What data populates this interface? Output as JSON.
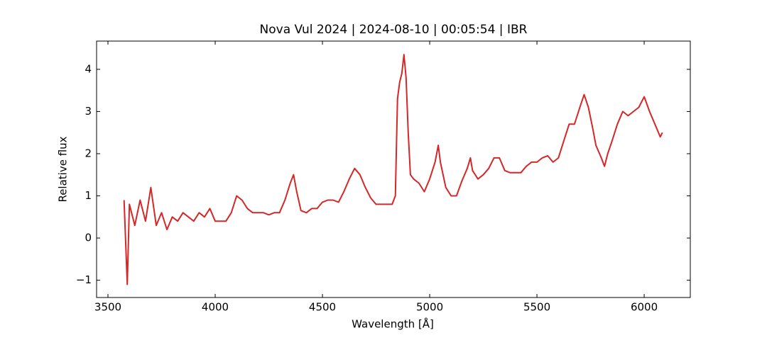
{
  "chart_data": {
    "type": "line",
    "title": "Nova Vul 2024 | 2024-08-10 | 00:05:54 | IBR",
    "x_label": "Wavelength [Å]",
    "y_label": "Relative flux",
    "xlim": [
      3447,
      6215
    ],
    "ylim": [
      -1.41,
      4.67
    ],
    "xticks": [
      3500,
      4000,
      4500,
      5000,
      5500,
      6000
    ],
    "yticks": [
      {
        "value": -1,
        "label": "−1"
      },
      0,
      1,
      2,
      3,
      4
    ],
    "x": [
      3575,
      3590,
      3600,
      3625,
      3650,
      3675,
      3700,
      3725,
      3750,
      3775,
      3800,
      3825,
      3850,
      3875,
      3900,
      3925,
      3950,
      3975,
      4000,
      4025,
      4050,
      4075,
      4100,
      4125,
      4150,
      4175,
      4200,
      4225,
      4250,
      4275,
      4300,
      4325,
      4350,
      4365,
      4380,
      4400,
      4425,
      4450,
      4475,
      4500,
      4525,
      4550,
      4575,
      4600,
      4625,
      4650,
      4675,
      4700,
      4725,
      4750,
      4775,
      4800,
      4825,
      4840,
      4850,
      4860,
      4870,
      4880,
      4890,
      4900,
      4910,
      4925,
      4950,
      4975,
      5000,
      5025,
      5040,
      5050,
      5075,
      5100,
      5125,
      5150,
      5175,
      5190,
      5200,
      5225,
      5250,
      5275,
      5300,
      5325,
      5350,
      5375,
      5400,
      5425,
      5450,
      5475,
      5500,
      5525,
      5550,
      5575,
      5600,
      5625,
      5650,
      5675,
      5700,
      5720,
      5740,
      5760,
      5775,
      5800,
      5815,
      5830,
      5850,
      5875,
      5900,
      5925,
      5950,
      5975,
      6000,
      6025,
      6050,
      6075,
      6085
    ],
    "series": [
      {
        "color": "#d62728",
        "values": [
          0.9,
          -1.1,
          0.8,
          0.3,
          0.9,
          0.4,
          1.2,
          0.3,
          0.6,
          0.2,
          0.5,
          0.4,
          0.6,
          0.5,
          0.4,
          0.6,
          0.5,
          0.7,
          0.4,
          0.4,
          0.4,
          0.6,
          1.0,
          0.9,
          0.7,
          0.6,
          0.6,
          0.6,
          0.55,
          0.6,
          0.6,
          0.9,
          1.3,
          1.5,
          1.1,
          0.65,
          0.6,
          0.7,
          0.7,
          0.85,
          0.9,
          0.9,
          0.85,
          1.1,
          1.4,
          1.65,
          1.5,
          1.2,
          0.95,
          0.8,
          0.8,
          0.8,
          0.8,
          1.0,
          3.3,
          3.7,
          3.9,
          4.35,
          3.8,
          2.5,
          1.5,
          1.4,
          1.3,
          1.1,
          1.4,
          1.8,
          2.2,
          1.8,
          1.2,
          1.0,
          1.0,
          1.35,
          1.65,
          1.9,
          1.6,
          1.4,
          1.5,
          1.65,
          1.9,
          1.9,
          1.6,
          1.55,
          1.55,
          1.55,
          1.7,
          1.8,
          1.8,
          1.9,
          1.95,
          1.8,
          1.9,
          2.3,
          2.7,
          2.7,
          3.1,
          3.4,
          3.1,
          2.6,
          2.2,
          1.9,
          1.7,
          2.0,
          2.3,
          2.7,
          3.0,
          2.9,
          3.0,
          3.1,
          3.35,
          3.0,
          2.7,
          2.4,
          2.5
        ]
      }
    ]
  }
}
